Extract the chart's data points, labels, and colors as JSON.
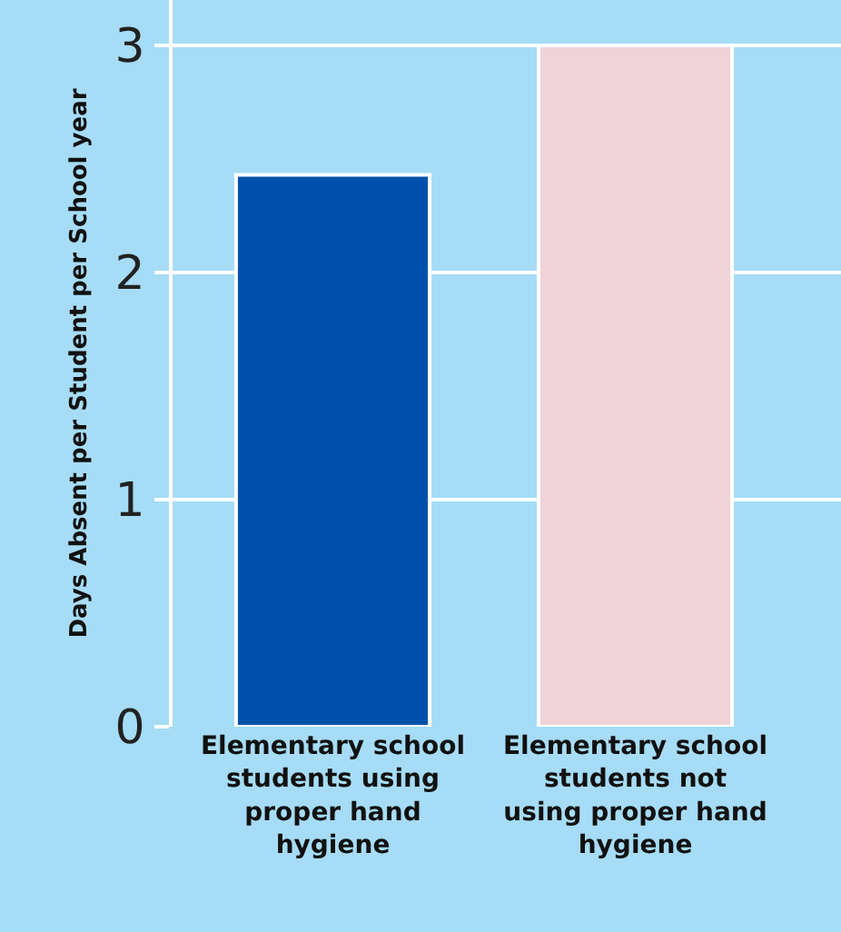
{
  "chart_data": {
    "type": "bar",
    "ylabel": "Days Absent per Student per School year",
    "categories": [
      "Elementary school students using proper hand hygiene",
      "Elementary school students not using proper hand hygiene"
    ],
    "values": [
      2.43,
      3
    ],
    "colors": [
      "#0051ab",
      "#f0d3d9"
    ],
    "ylim": [
      0,
      3.2
    ],
    "yticks": [
      0,
      1,
      2,
      3
    ],
    "grid": "y"
  }
}
